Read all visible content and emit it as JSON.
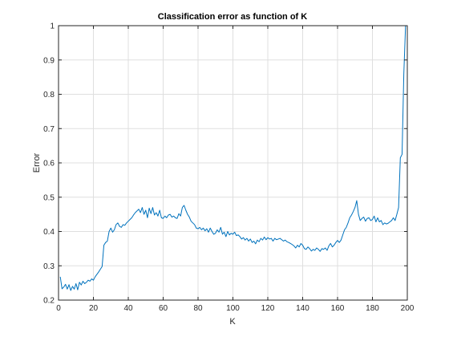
{
  "chart_data": {
    "type": "line",
    "title": "Classification error as function of K",
    "xlabel": "K",
    "ylabel": "Error",
    "xlim": [
      0,
      200
    ],
    "ylim": [
      0.2,
      1
    ],
    "xticks": [
      0,
      20,
      40,
      60,
      80,
      100,
      120,
      140,
      160,
      180,
      200
    ],
    "yticks": [
      0.2,
      0.3,
      0.4,
      0.5,
      0.6,
      0.7,
      0.8,
      0.9,
      1
    ],
    "ytick_labels": [
      "0.2",
      "0.3",
      "0.4",
      "0.5",
      "0.6",
      "0.7",
      "0.8",
      "0.9",
      "1"
    ],
    "grid": true,
    "line_color": "#0072bd",
    "series": [
      {
        "x": [
          1,
          2,
          3,
          4,
          5,
          6,
          7,
          8,
          9,
          10,
          11,
          12,
          13,
          14,
          15,
          16,
          17,
          18,
          19,
          20,
          21,
          22,
          23,
          24,
          25,
          26,
          27,
          28,
          29,
          30,
          31,
          32,
          33,
          34,
          35,
          36,
          37,
          38,
          39,
          40,
          41,
          42,
          43,
          44,
          45,
          46,
          47,
          48,
          49,
          50,
          51,
          52,
          53,
          54,
          55,
          56,
          57,
          58,
          59,
          60,
          61,
          62,
          63,
          64,
          65,
          66,
          67,
          68,
          69,
          70,
          71,
          72,
          73,
          74,
          75,
          76,
          77,
          78,
          79,
          80,
          81,
          82,
          83,
          84,
          85,
          86,
          87,
          88,
          89,
          90,
          91,
          92,
          93,
          94,
          95,
          96,
          97,
          98,
          99,
          100,
          101,
          102,
          103,
          104,
          105,
          106,
          107,
          108,
          109,
          110,
          111,
          112,
          113,
          114,
          115,
          116,
          117,
          118,
          119,
          120,
          121,
          122,
          123,
          124,
          125,
          126,
          127,
          128,
          129,
          130,
          131,
          132,
          133,
          134,
          135,
          136,
          137,
          138,
          139,
          140,
          141,
          142,
          143,
          144,
          145,
          146,
          147,
          148,
          149,
          150,
          151,
          152,
          153,
          154,
          155,
          156,
          157,
          158,
          159,
          160,
          161,
          162,
          163,
          164,
          165,
          166,
          167,
          168,
          169,
          170,
          171,
          172,
          173,
          174,
          175,
          176,
          177,
          178,
          179,
          180,
          181,
          182,
          183,
          184,
          185,
          186,
          187,
          188,
          189,
          190,
          191,
          192,
          193,
          194,
          195,
          196,
          197,
          198,
          199
        ],
        "y": [
          0.268,
          0.233,
          0.238,
          0.246,
          0.232,
          0.245,
          0.228,
          0.24,
          0.232,
          0.248,
          0.23,
          0.252,
          0.244,
          0.255,
          0.248,
          0.252,
          0.258,
          0.255,
          0.262,
          0.258,
          0.268,
          0.275,
          0.282,
          0.29,
          0.298,
          0.36,
          0.368,
          0.372,
          0.4,
          0.41,
          0.398,
          0.405,
          0.42,
          0.425,
          0.415,
          0.412,
          0.42,
          0.418,
          0.425,
          0.43,
          0.435,
          0.44,
          0.448,
          0.455,
          0.46,
          0.465,
          0.455,
          0.47,
          0.45,
          0.462,
          0.44,
          0.468,
          0.452,
          0.47,
          0.448,
          0.455,
          0.445,
          0.462,
          0.44,
          0.438,
          0.445,
          0.44,
          0.448,
          0.45,
          0.442,
          0.445,
          0.44,
          0.438,
          0.452,
          0.445,
          0.47,
          0.476,
          0.462,
          0.45,
          0.442,
          0.43,
          0.425,
          0.42,
          0.41,
          0.408,
          0.412,
          0.405,
          0.41,
          0.402,
          0.408,
          0.398,
          0.41,
          0.4,
          0.392,
          0.395,
          0.405,
          0.398,
          0.412,
          0.392,
          0.398,
          0.385,
          0.4,
          0.39,
          0.395,
          0.392,
          0.398,
          0.388,
          0.39,
          0.385,
          0.378,
          0.382,
          0.375,
          0.38,
          0.372,
          0.378,
          0.368,
          0.372,
          0.364,
          0.375,
          0.37,
          0.38,
          0.375,
          0.384,
          0.376,
          0.382,
          0.378,
          0.38,
          0.372,
          0.38,
          0.376,
          0.378,
          0.38,
          0.376,
          0.372,
          0.375,
          0.37,
          0.368,
          0.365,
          0.362,
          0.358,
          0.352,
          0.36,
          0.355,
          0.365,
          0.36,
          0.35,
          0.348,
          0.355,
          0.35,
          0.343,
          0.348,
          0.345,
          0.352,
          0.348,
          0.342,
          0.35,
          0.348,
          0.352,
          0.345,
          0.358,
          0.365,
          0.355,
          0.36,
          0.368,
          0.374,
          0.368,
          0.375,
          0.39,
          0.405,
          0.412,
          0.425,
          0.44,
          0.448,
          0.458,
          0.47,
          0.49,
          0.45,
          0.432,
          0.438,
          0.442,
          0.43,
          0.438,
          0.44,
          0.432,
          0.435,
          0.445,
          0.428,
          0.44,
          0.428,
          0.432,
          0.42,
          0.425,
          0.422,
          0.424,
          0.428,
          0.432,
          0.44,
          0.432,
          0.45,
          0.47,
          0.615,
          0.625,
          0.86,
          1.0
        ]
      }
    ]
  }
}
